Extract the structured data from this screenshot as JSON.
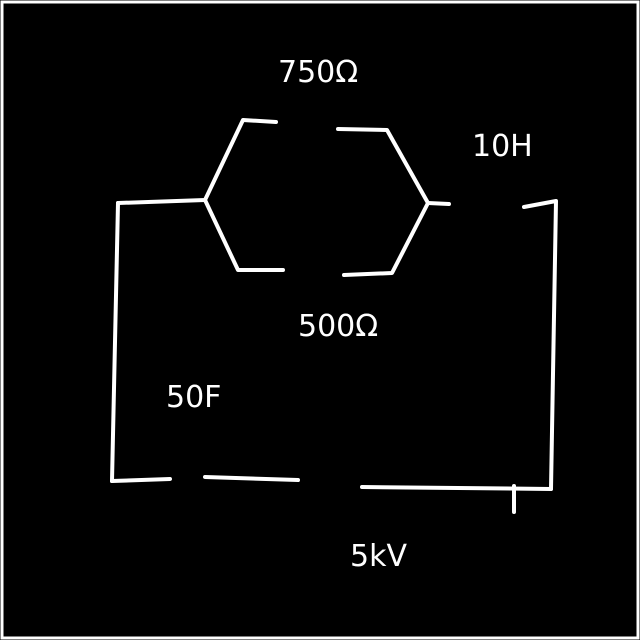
{
  "diagram": {
    "colors": {
      "background": "#000000",
      "ink": "#ffffff"
    },
    "labels": {
      "resistor_top": "750Ω",
      "resistor_bottom": "500Ω",
      "inductor": "10H",
      "capacitor": "50F",
      "source": "5kV"
    }
  }
}
